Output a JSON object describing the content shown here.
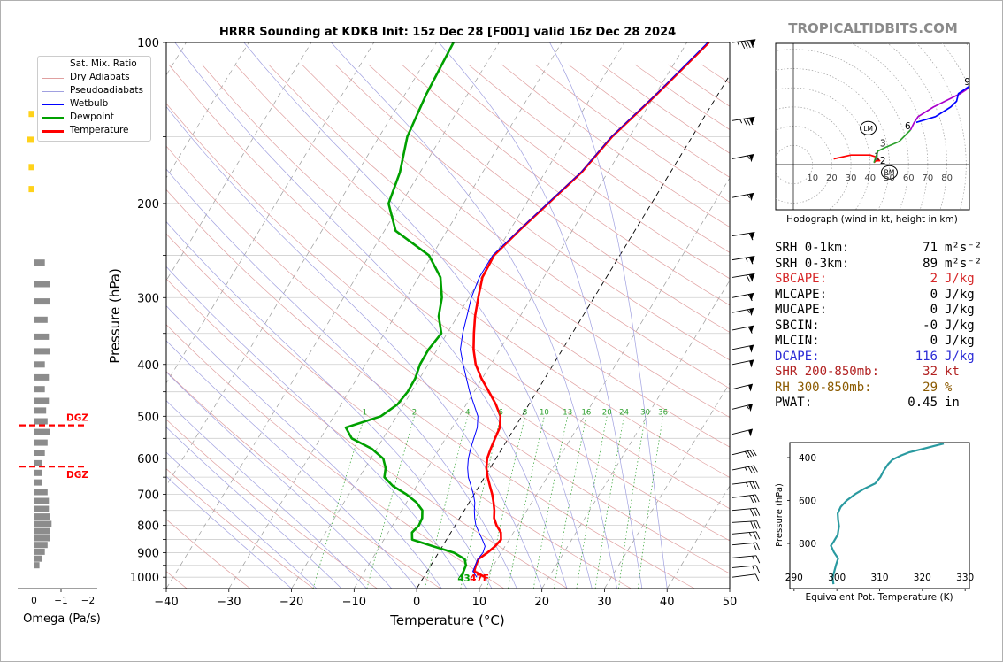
{
  "watermark": "TROPICALTIDBITS.COM",
  "chart_data": [
    {
      "type": "line",
      "name": "skewt",
      "title": "HRRR Sounding at KDKB Init: 15z Dec 28 [F001] valid 16z Dec 28 2024",
      "xlabel": "Temperature (°C)",
      "ylabel": "Pressure (hPa)",
      "xlim": [
        -40,
        50
      ],
      "ylim": [
        1050,
        100
      ],
      "log_y": true,
      "x_ticks": [
        -40,
        -30,
        -20,
        -10,
        0,
        10,
        20,
        30,
        40,
        50
      ],
      "x_tick_labels": [
        "−40",
        "−30",
        "−20",
        "−10",
        "0",
        "10",
        "20",
        "30",
        "40",
        "50"
      ],
      "y_ticks": [
        100,
        200,
        300,
        400,
        500,
        600,
        700,
        800,
        900,
        1000
      ],
      "grid": true,
      "legend": {
        "placement": "upper-left",
        "entries": [
          {
            "label": "Sat. Mix. Ratio",
            "color": "#2ca02c",
            "style": "dotted"
          },
          {
            "label": "Dry Adiabats",
            "color": "#e0a0a0",
            "style": "solid"
          },
          {
            "label": "Pseudoadiabats",
            "color": "#a0a0e0",
            "style": "solid"
          },
          {
            "label": "Wetbulb",
            "color": "#0000ff",
            "style": "solid"
          },
          {
            "label": "Dewpoint",
            "color": "#00a000",
            "style": "thick"
          },
          {
            "label": "Temperature",
            "color": "#ff0000",
            "style": "thick"
          }
        ]
      },
      "series": [
        {
          "name": "Temperature",
          "color": "#ff0000",
          "points": [
            [
              9.8,
              1000
            ],
            [
              7.5,
              975
            ],
            [
              7.2,
              950
            ],
            [
              7.0,
              925
            ],
            [
              7.8,
              900
            ],
            [
              8.4,
              875
            ],
            [
              8.7,
              850
            ],
            [
              8.0,
              825
            ],
            [
              6.6,
              800
            ],
            [
              5.5,
              775
            ],
            [
              4.8,
              750
            ],
            [
              3.9,
              725
            ],
            [
              2.9,
              700
            ],
            [
              1.7,
              675
            ],
            [
              0.5,
              650
            ],
            [
              -0.6,
              625
            ],
            [
              -1.4,
              600
            ],
            [
              -1.8,
              575
            ],
            [
              -2.1,
              550
            ],
            [
              -2.4,
              525
            ],
            [
              -3.4,
              500
            ],
            [
              -5.3,
              475
            ],
            [
              -7.6,
              450
            ],
            [
              -10.1,
              425
            ],
            [
              -12.4,
              400
            ],
            [
              -14.2,
              375
            ],
            [
              -15.7,
              350
            ],
            [
              -17.2,
              325
            ],
            [
              -18.5,
              300
            ],
            [
              -19.8,
              275
            ],
            [
              -20.1,
              250
            ],
            [
              -18.5,
              225
            ],
            [
              -16.5,
              200
            ],
            [
              -14.2,
              175
            ],
            [
              -12.8,
              150
            ],
            [
              -9.8,
              125
            ],
            [
              -6.5,
              100
            ]
          ]
        },
        {
          "name": "Wetbulb",
          "color": "#0000ff",
          "points": [
            [
              8.5,
              1000
            ],
            [
              7.3,
              975
            ],
            [
              7.1,
              950
            ],
            [
              6.9,
              925
            ],
            [
              7.1,
              900
            ],
            [
              6.8,
              875
            ],
            [
              5.7,
              850
            ],
            [
              4.5,
              825
            ],
            [
              3.3,
              800
            ],
            [
              2.4,
              775
            ],
            [
              1.6,
              750
            ],
            [
              0.9,
              725
            ],
            [
              -0.1,
              700
            ],
            [
              -1.3,
              675
            ],
            [
              -2.6,
              650
            ],
            [
              -3.6,
              625
            ],
            [
              -4.4,
              600
            ],
            [
              -5.0,
              575
            ],
            [
              -5.5,
              550
            ],
            [
              -6.0,
              525
            ],
            [
              -7.0,
              500
            ],
            [
              -8.8,
              475
            ],
            [
              -10.7,
              450
            ],
            [
              -12.5,
              425
            ],
            [
              -14.4,
              400
            ],
            [
              -16.3,
              375
            ],
            [
              -17.5,
              350
            ],
            [
              -18.5,
              325
            ],
            [
              -19.6,
              300
            ],
            [
              -20.3,
              275
            ],
            [
              -20.3,
              250
            ],
            [
              -18.6,
              225
            ],
            [
              -16.6,
              200
            ],
            [
              -14.3,
              175
            ],
            [
              -12.9,
              150
            ],
            [
              -9.9,
              125
            ],
            [
              -6.7,
              100
            ]
          ]
        },
        {
          "name": "Dewpoint",
          "color": "#00a000",
          "points": [
            [
              6.0,
              1000
            ],
            [
              5.8,
              975
            ],
            [
              5.6,
              950
            ],
            [
              4.8,
              925
            ],
            [
              2.5,
              900
            ],
            [
              -1.5,
              875
            ],
            [
              -5.5,
              850
            ],
            [
              -6.2,
              825
            ],
            [
              -5.8,
              800
            ],
            [
              -6.0,
              775
            ],
            [
              -6.7,
              750
            ],
            [
              -8.4,
              725
            ],
            [
              -10.8,
              700
            ],
            [
              -13.8,
              675
            ],
            [
              -16.0,
              650
            ],
            [
              -16.7,
              625
            ],
            [
              -18.0,
              600
            ],
            [
              -20.8,
              575
            ],
            [
              -25.0,
              550
            ],
            [
              -27.0,
              525
            ],
            [
              -22.5,
              500
            ],
            [
              -21.0,
              475
            ],
            [
              -20.6,
              450
            ],
            [
              -20.7,
              425
            ],
            [
              -21.3,
              400
            ],
            [
              -21.4,
              375
            ],
            [
              -20.9,
              350
            ],
            [
              -23.0,
              325
            ],
            [
              -24.3,
              300
            ],
            [
              -26.5,
              275
            ],
            [
              -30.5,
              250
            ],
            [
              -38.2,
              225
            ],
            [
              -42.0,
              200
            ],
            [
              -43.2,
              175
            ],
            [
              -45.5,
              150
            ],
            [
              -46.6,
              125
            ],
            [
              -47.3,
              100
            ]
          ]
        }
      ],
      "annotations": [
        "4",
        "3",
        "47F"
      ],
      "mixing_ratio_labels": [
        "1",
        "2",
        "4",
        "6",
        "8",
        "10",
        "13",
        "16",
        "20",
        "24",
        "30",
        "36"
      ]
    },
    {
      "type": "bar",
      "name": "omega",
      "xlabel": "Omega (Pa/s)",
      "xlim": [
        1,
        -2
      ],
      "x_ticks": [
        0,
        -1,
        -2
      ],
      "x_tick_labels": [
        "0",
        "−1",
        "−2"
      ],
      "dgz_label": "DGZ",
      "dgz_pressures": [
        520,
        621
      ],
      "bars_pressure": [
        136,
        152,
        171,
        188,
        258,
        283,
        305,
        330,
        355,
        378,
        400,
        423,
        445,
        468,
        488,
        511,
        535,
        560,
        585,
        612,
        638,
        665,
        693,
        720,
        745,
        770,
        795,
        820,
        845,
        870,
        896,
        923,
        950
      ],
      "bars_value": [
        0.2,
        0.25,
        0.2,
        0.2,
        -0.4,
        -0.6,
        -0.6,
        -0.5,
        -0.55,
        -0.6,
        -0.4,
        -0.55,
        -0.4,
        -0.55,
        -0.45,
        -0.5,
        -0.6,
        -0.5,
        -0.4,
        -0.3,
        -0.3,
        -0.3,
        -0.5,
        -0.55,
        -0.55,
        -0.6,
        -0.65,
        -0.6,
        -0.6,
        -0.5,
        -0.4,
        -0.3,
        -0.2
      ]
    },
    {
      "type": "line",
      "name": "hodograph",
      "xlabel": "Hodograph (wind in kt, height in km)",
      "ring_labels": [
        "10",
        "20",
        "30",
        "40",
        "50",
        "60",
        "70",
        "80"
      ],
      "height_labels": [
        "1",
        "2",
        "3",
        "6",
        "9"
      ],
      "markers": [
        "LM",
        "RM"
      ],
      "series": [
        {
          "color": "#ff0000",
          "points": [
            [
              21,
              3
            ],
            [
              30,
              5
            ],
            [
              40,
              5
            ],
            [
              43,
              4
            ],
            [
              45,
              2
            ],
            [
              43,
              2
            ],
            [
              42,
              1
            ]
          ]
        },
        {
          "color": "#2ca02c",
          "points": [
            [
              42,
              1
            ],
            [
              44,
              7
            ],
            [
              48,
              9
            ],
            [
              55,
              12
            ],
            [
              61,
              18
            ]
          ]
        },
        {
          "color": "#aa00cc",
          "points": [
            [
              61,
              18
            ],
            [
              63,
              22
            ],
            [
              65,
              25
            ],
            [
              73,
              30
            ],
            [
              83,
              35
            ],
            [
              87,
              37
            ],
            [
              90,
              39
            ],
            [
              92,
              41
            ]
          ]
        },
        {
          "color": "#0000ff",
          "points": [
            [
              64,
              22
            ],
            [
              74,
              25
            ],
            [
              82,
              30
            ],
            [
              85,
              33
            ],
            [
              86,
              37
            ],
            [
              92,
              41
            ]
          ]
        }
      ],
      "marker_positions": {
        "LM": [
          39,
          19
        ],
        "RM": [
          50,
          -4
        ]
      }
    },
    {
      "type": "line",
      "name": "theta-e",
      "xlabel": "Equivalent Pot. Temperature (K)",
      "ylabel": "Pressure (hPa)",
      "xlim": [
        289,
        331
      ],
      "ylim": [
        1010,
        330
      ],
      "x_ticks": [
        290,
        300,
        310,
        320,
        330
      ],
      "y_ticks": [
        400,
        600,
        800
      ],
      "color": "#2a9aa0",
      "points": [
        [
          299.2,
          990
        ],
        [
          299.0,
          960
        ],
        [
          299.4,
          930
        ],
        [
          299.8,
          900
        ],
        [
          300.3,
          870
        ],
        [
          299.3,
          840
        ],
        [
          298.6,
          810
        ],
        [
          299.3,
          790
        ],
        [
          300.2,
          760
        ],
        [
          300.5,
          720
        ],
        [
          300.3,
          690
        ],
        [
          300.2,
          660
        ],
        [
          300.9,
          630
        ],
        [
          302.3,
          600
        ],
        [
          304.3,
          570
        ],
        [
          306.4,
          545
        ],
        [
          309.0,
          520
        ],
        [
          310.2,
          490
        ],
        [
          311.0,
          460
        ],
        [
          312.0,
          430
        ],
        [
          313.0,
          410
        ],
        [
          315.0,
          390
        ],
        [
          317.0,
          375
        ],
        [
          320.0,
          360
        ],
        [
          323.0,
          345
        ],
        [
          325.0,
          335
        ]
      ]
    }
  ],
  "hodograph_caption": "Hodograph (wind in kt, height in km)",
  "stats": [
    {
      "label": "SRH 0-1km:",
      "value": "71",
      "unit": "m²s⁻²",
      "color": "#000000"
    },
    {
      "label": "SRH 0-3km:",
      "value": "89",
      "unit": "m²s⁻²",
      "color": "#000000"
    },
    {
      "label": "SBCAPE:",
      "value": "2",
      "unit": "J/kg",
      "color": "#d62728"
    },
    {
      "label": "MLCAPE:",
      "value": "0",
      "unit": "J/kg",
      "color": "#000000"
    },
    {
      "label": "MUCAPE:",
      "value": "0",
      "unit": "J/kg",
      "color": "#000000"
    },
    {
      "label": "SBCIN:",
      "value": "-0",
      "unit": "J/kg",
      "color": "#000000"
    },
    {
      "label": "MLCIN:",
      "value": "0",
      "unit": "J/kg",
      "color": "#000000"
    },
    {
      "label": "DCAPE:",
      "value": "116",
      "unit": "J/kg",
      "color": "#2b2bd6"
    },
    {
      "label": "SHR 200-850mb:",
      "value": "32",
      "unit": "kt",
      "color": "#b22222"
    },
    {
      "label": "RH 300-850mb:",
      "value": "29",
      "unit": "%",
      "color": "#8b5a00"
    },
    {
      "label": "PWAT:",
      "value": "0.45",
      "unit": "in",
      "color": "#000000"
    }
  ],
  "wind_barbs": [
    {
      "p": 100,
      "speed": 95,
      "dir": 250
    },
    {
      "p": 140,
      "speed": 85,
      "dir": 245
    },
    {
      "p": 165,
      "speed": 55,
      "dir": 240
    },
    {
      "p": 195,
      "speed": 55,
      "dir": 240
    },
    {
      "p": 230,
      "speed": 60,
      "dir": 245
    },
    {
      "p": 255,
      "speed": 65,
      "dir": 245
    },
    {
      "p": 275,
      "speed": 70,
      "dir": 245
    },
    {
      "p": 300,
      "speed": 60,
      "dir": 240
    },
    {
      "p": 320,
      "speed": 55,
      "dir": 240
    },
    {
      "p": 345,
      "speed": 60,
      "dir": 240
    },
    {
      "p": 375,
      "speed": 50,
      "dir": 240
    },
    {
      "p": 400,
      "speed": 50,
      "dir": 240
    },
    {
      "p": 445,
      "speed": 50,
      "dir": 235
    },
    {
      "p": 485,
      "speed": 55,
      "dir": 235
    },
    {
      "p": 540,
      "speed": 50,
      "dir": 235
    },
    {
      "p": 590,
      "speed": 40,
      "dir": 235
    },
    {
      "p": 630,
      "speed": 35,
      "dir": 240
    },
    {
      "p": 670,
      "speed": 35,
      "dir": 250
    },
    {
      "p": 710,
      "speed": 30,
      "dir": 250
    },
    {
      "p": 750,
      "speed": 30,
      "dir": 255
    },
    {
      "p": 790,
      "speed": 30,
      "dir": 260
    },
    {
      "p": 830,
      "speed": 25,
      "dir": 255
    },
    {
      "p": 870,
      "speed": 20,
      "dir": 255
    },
    {
      "p": 920,
      "speed": 15,
      "dir": 255
    },
    {
      "p": 960,
      "speed": 15,
      "dir": 255
    },
    {
      "p": 1000,
      "speed": 10,
      "dir": 250
    }
  ]
}
